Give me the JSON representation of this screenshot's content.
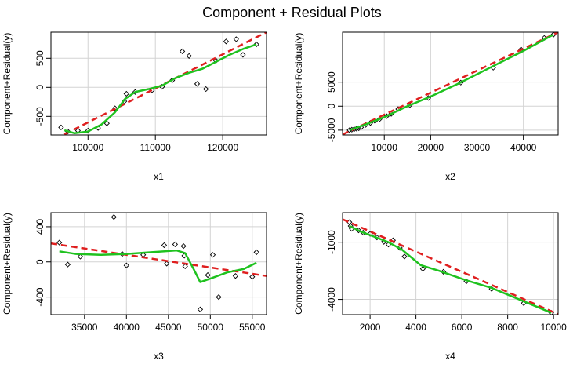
{
  "title": "Component + Residual Plots",
  "colors": {
    "fit_line": "#DF1F1F",
    "smooth_line": "#1FC21F",
    "grid": "#D3D3D3",
    "points": "#000000"
  },
  "chart_data": [
    {
      "type": "scatter",
      "id": "x1",
      "xlabel": "x1",
      "ylabel": "Component+Residual(y)",
      "xlim": [
        94500,
        126500
      ],
      "ylim": [
        -820,
        950
      ],
      "xticks": [
        100000,
        110000,
        120000
      ],
      "yticks": [
        -500,
        0,
        500
      ],
      "grid": true,
      "points": [
        [
          96000,
          -690
        ],
        [
          97000,
          -760
        ],
        [
          98500,
          -745
        ],
        [
          100000,
          -745
        ],
        [
          101500,
          -700
        ],
        [
          102800,
          -620
        ],
        [
          104000,
          -360
        ],
        [
          105400,
          -240
        ],
        [
          105700,
          -110
        ],
        [
          107000,
          -80
        ],
        [
          109500,
          -50
        ],
        [
          111000,
          10
        ],
        [
          112500,
          120
        ],
        [
          114000,
          620
        ],
        [
          115000,
          540
        ],
        [
          116200,
          60
        ],
        [
          117500,
          -30
        ],
        [
          119000,
          460
        ],
        [
          120500,
          790
        ],
        [
          122000,
          830
        ],
        [
          123000,
          560
        ],
        [
          125000,
          740
        ]
      ],
      "fit_line": [
        [
          96500,
          -810
        ],
        [
          126500,
          950
        ]
      ],
      "smooth_line": [
        [
          96500,
          -740
        ],
        [
          98000,
          -790
        ],
        [
          100000,
          -760
        ],
        [
          102000,
          -640
        ],
        [
          104000,
          -430
        ],
        [
          105500,
          -200
        ],
        [
          107000,
          -80
        ],
        [
          109000,
          -30
        ],
        [
          111000,
          30
        ],
        [
          113000,
          160
        ],
        [
          115000,
          250
        ],
        [
          117000,
          320
        ],
        [
          119000,
          440
        ],
        [
          121000,
          560
        ],
        [
          123000,
          660
        ],
        [
          125000,
          740
        ]
      ]
    },
    {
      "type": "scatter",
      "id": "x2",
      "xlabel": "x2",
      "ylabel": "Component+Residual(y)",
      "xlim": [
        1000,
        47500
      ],
      "ylim": [
        -6000,
        15400
      ],
      "xticks": [
        10000,
        20000,
        30000,
        40000
      ],
      "yticks": [
        -5000,
        0,
        5000
      ],
      "grid": true,
      "points": [
        [
          2500,
          -5000
        ],
        [
          3000,
          -4900
        ],
        [
          3500,
          -4800
        ],
        [
          4000,
          -4700
        ],
        [
          4500,
          -4600
        ],
        [
          5000,
          -4400
        ],
        [
          6000,
          -3900
        ],
        [
          7000,
          -3500
        ],
        [
          8000,
          -3100
        ],
        [
          9000,
          -2700
        ],
        [
          10500,
          -2100
        ],
        [
          11500,
          -1600
        ],
        [
          13000,
          -600
        ],
        [
          15500,
          200
        ],
        [
          19500,
          1700
        ],
        [
          26500,
          4900
        ],
        [
          33500,
          8000
        ],
        [
          39500,
          11800
        ],
        [
          44500,
          14200
        ],
        [
          46500,
          14900
        ]
      ],
      "fit_line": [
        [
          1000,
          -5900
        ],
        [
          47500,
          15400
        ]
      ],
      "smooth_line": [
        [
          2500,
          -5000
        ],
        [
          6000,
          -3800
        ],
        [
          10000,
          -2300
        ],
        [
          15000,
          0
        ],
        [
          20000,
          2000
        ],
        [
          26000,
          4700
        ],
        [
          33000,
          8100
        ],
        [
          40000,
          11500
        ],
        [
          46500,
          14900
        ]
      ]
    },
    {
      "type": "scatter",
      "id": "x3",
      "xlabel": "x3",
      "ylabel": "Component+Residual(y)",
      "xlim": [
        31000,
        56700
      ],
      "ylim": [
        -600,
        560
      ],
      "xticks": [
        35000,
        40000,
        45000,
        50000,
        55000
      ],
      "yticks": [
        -400,
        0,
        400
      ],
      "grid": true,
      "points": [
        [
          32000,
          220
        ],
        [
          33000,
          -30
        ],
        [
          34500,
          60
        ],
        [
          38500,
          510
        ],
        [
          39500,
          90
        ],
        [
          40000,
          -40
        ],
        [
          42000,
          80
        ],
        [
          44500,
          190
        ],
        [
          44800,
          -20
        ],
        [
          45800,
          200
        ],
        [
          46800,
          180
        ],
        [
          46900,
          70
        ],
        [
          47000,
          -50
        ],
        [
          48800,
          -540
        ],
        [
          49700,
          -150
        ],
        [
          50300,
          80
        ],
        [
          51000,
          -400
        ],
        [
          53000,
          -160
        ],
        [
          55000,
          -170
        ],
        [
          55500,
          110
        ]
      ],
      "fit_line": [
        [
          31000,
          210
        ],
        [
          56700,
          -160
        ]
      ],
      "smooth_line": [
        [
          32000,
          120
        ],
        [
          34000,
          90
        ],
        [
          37000,
          80
        ],
        [
          40000,
          90
        ],
        [
          43000,
          110
        ],
        [
          46000,
          130
        ],
        [
          47000,
          100
        ],
        [
          48000,
          -80
        ],
        [
          48800,
          -230
        ],
        [
          50000,
          -190
        ],
        [
          52000,
          -120
        ],
        [
          54000,
          -80
        ],
        [
          55500,
          -10
        ]
      ]
    },
    {
      "type": "scatter",
      "id": "x4",
      "xlabel": "x4",
      "ylabel": "Component+Residual(y)",
      "xlim": [
        800,
        10200
      ],
      "ylim": [
        -4800,
        550
      ],
      "xticks": [
        2000,
        4000,
        6000,
        8000,
        10000
      ],
      "yticks": [
        -4000,
        -1000
      ],
      "grid": true,
      "points": [
        [
          1100,
          50
        ],
        [
          1150,
          -150
        ],
        [
          1200,
          -300
        ],
        [
          1500,
          -380
        ],
        [
          1700,
          -500
        ],
        [
          2000,
          -560
        ],
        [
          2300,
          -750
        ],
        [
          2600,
          -980
        ],
        [
          2800,
          -1120
        ],
        [
          3000,
          -900
        ],
        [
          3300,
          -1300
        ],
        [
          3500,
          -1750
        ],
        [
          4300,
          -2400
        ],
        [
          5200,
          -2550
        ],
        [
          6200,
          -3050
        ],
        [
          7300,
          -3450
        ],
        [
          8700,
          -4200
        ],
        [
          9900,
          -4700
        ]
      ],
      "fit_line": [
        [
          800,
          200
        ],
        [
          10200,
          -4780
        ]
      ],
      "smooth_line": [
        [
          1100,
          -150
        ],
        [
          1600,
          -450
        ],
        [
          2200,
          -720
        ],
        [
          2800,
          -1000
        ],
        [
          3400,
          -1400
        ],
        [
          4200,
          -2200
        ],
        [
          5000,
          -2500
        ],
        [
          6200,
          -3000
        ],
        [
          7300,
          -3400
        ],
        [
          8500,
          -4000
        ],
        [
          9900,
          -4700
        ]
      ]
    }
  ]
}
